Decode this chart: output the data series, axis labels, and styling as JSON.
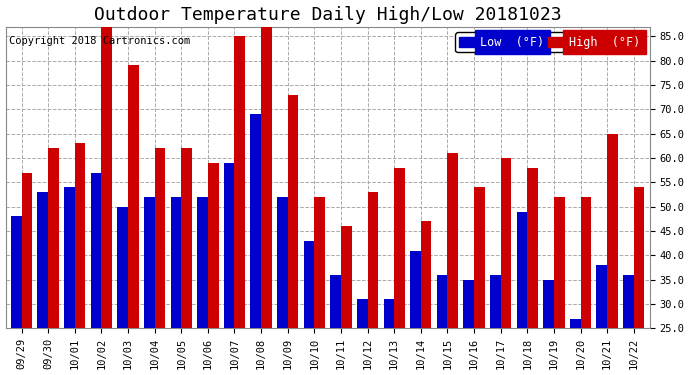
{
  "title": "Outdoor Temperature Daily High/Low 20181023",
  "copyright": "Copyright 2018 Cartronics.com",
  "dates": [
    "09/29",
    "09/30",
    "10/01",
    "10/02",
    "10/03",
    "10/04",
    "10/05",
    "10/06",
    "10/07",
    "10/08",
    "10/09",
    "10/10",
    "10/11",
    "10/12",
    "10/13",
    "10/14",
    "10/15",
    "10/16",
    "10/17",
    "10/18",
    "10/19",
    "10/20",
    "10/21",
    "10/22"
  ],
  "low_values": [
    48,
    53,
    54,
    57,
    50,
    52,
    52,
    52,
    59,
    69,
    52,
    43,
    36,
    31,
    31,
    41,
    36,
    35,
    36,
    49,
    35,
    27,
    38,
    36
  ],
  "high_values": [
    57,
    62,
    63,
    87,
    79,
    62,
    62,
    59,
    85,
    87,
    73,
    52,
    46,
    53,
    58,
    47,
    61,
    54,
    60,
    58,
    52,
    52,
    65,
    54
  ],
  "low_color": "#0000cc",
  "high_color": "#cc0000",
  "bg_color": "#ffffff",
  "plot_bg_color": "#ffffff",
  "grid_color": "#aaaaaa",
  "ylim_low": 25.0,
  "ylim_high": 87.0,
  "yticks": [
    25.0,
    30.0,
    35.0,
    40.0,
    45.0,
    50.0,
    55.0,
    60.0,
    65.0,
    70.0,
    75.0,
    80.0,
    85.0
  ],
  "bar_width": 0.4,
  "legend_low_label": "Low  (°F)",
  "legend_high_label": "High  (°F)",
  "title_fontsize": 13,
  "copyright_fontsize": 7.5,
  "tick_fontsize": 7.5,
  "legend_fontsize": 8.5
}
